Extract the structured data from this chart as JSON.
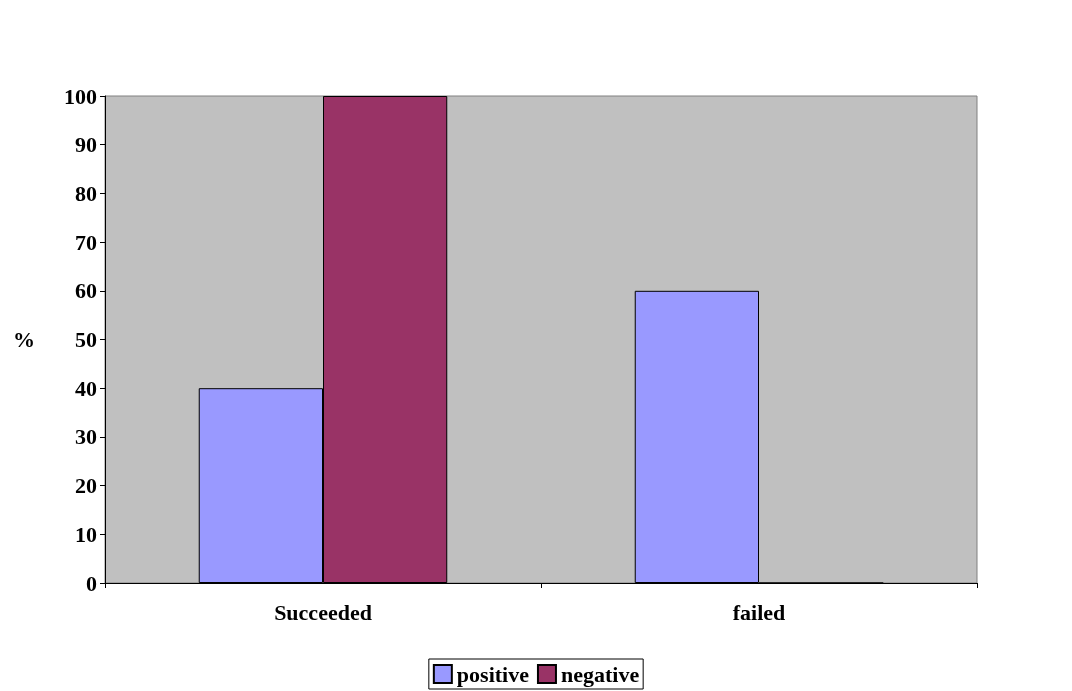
{
  "chart_data": {
    "type": "bar",
    "ylabel": "%",
    "categories": [
      "Succeeded",
      "failed"
    ],
    "series": [
      {
        "name": "positive",
        "color": "#9999ff",
        "values": [
          40,
          60
        ]
      },
      {
        "name": "negative",
        "color": "#993366",
        "values": [
          100,
          0
        ]
      }
    ],
    "ylim": [
      0,
      100
    ],
    "yticks": [
      0,
      10,
      20,
      30,
      40,
      50,
      60,
      70,
      80,
      90,
      100
    ],
    "legend": "bottom"
  }
}
